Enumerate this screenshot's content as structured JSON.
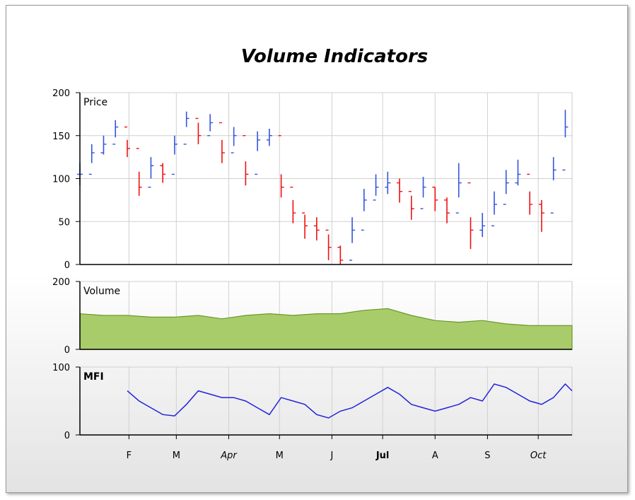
{
  "title": "Volume Indicators",
  "chart_data": [
    {
      "type": "ohlc",
      "panel": "Price",
      "label": "Price",
      "ylim": [
        0,
        200
      ],
      "yticks": [
        "200",
        "150",
        "100",
        "50",
        "0"
      ],
      "grid": true,
      "up_color": "#3355dd",
      "down_color": "#ee1111",
      "x_range": [
        "2011-01-03",
        "2011-10-21"
      ],
      "x": [
        "2011-01-03",
        "2011-01-10",
        "2011-01-17",
        "2011-01-24",
        "2011-01-31",
        "2011-02-07",
        "2011-02-14",
        "2011-02-21",
        "2011-02-28",
        "2011-03-07",
        "2011-03-14",
        "2011-03-21",
        "2011-03-28",
        "2011-04-04",
        "2011-04-11",
        "2011-04-18",
        "2011-04-25",
        "2011-05-02",
        "2011-05-09",
        "2011-05-16",
        "2011-05-23",
        "2011-05-30",
        "2011-06-06",
        "2011-06-13",
        "2011-06-20",
        "2011-06-27",
        "2011-07-04",
        "2011-07-11",
        "2011-07-18",
        "2011-07-25",
        "2011-08-01",
        "2011-08-08",
        "2011-08-15",
        "2011-08-22",
        "2011-08-29",
        "2011-09-05",
        "2011-09-12",
        "2011-09-19",
        "2011-09-26",
        "2011-10-03",
        "2011-10-10",
        "2011-10-17"
      ],
      "close": [
        105,
        130,
        140,
        160,
        135,
        90,
        115,
        105,
        140,
        170,
        150,
        165,
        130,
        150,
        105,
        145,
        150,
        90,
        60,
        45,
        40,
        20,
        5,
        40,
        75,
        90,
        95,
        85,
        65,
        90,
        75,
        60,
        95,
        40,
        45,
        70,
        95,
        105,
        70,
        60,
        110,
        160
      ],
      "high": [
        118,
        140,
        150,
        168,
        145,
        108,
        125,
        118,
        150,
        178,
        165,
        175,
        145,
        160,
        120,
        155,
        158,
        105,
        75,
        58,
        55,
        35,
        22,
        55,
        88,
        105,
        108,
        100,
        80,
        102,
        90,
        78,
        118,
        55,
        60,
        85,
        110,
        122,
        85,
        75,
        125,
        180
      ],
      "low": [
        92,
        118,
        128,
        148,
        125,
        80,
        100,
        95,
        128,
        160,
        140,
        155,
        118,
        138,
        92,
        132,
        138,
        78,
        48,
        30,
        28,
        5,
        0,
        25,
        62,
        80,
        82,
        72,
        52,
        78,
        62,
        48,
        78,
        18,
        32,
        58,
        82,
        92,
        58,
        38,
        98,
        148
      ]
    },
    {
      "type": "area",
      "panel": "Volume",
      "label": "Volume",
      "ylim": [
        0,
        200
      ],
      "yticks": [
        "200",
        "0"
      ],
      "grid": true,
      "fill_color": "#a9cc6a",
      "line_color": "#6a9a2a",
      "x": [
        "2011-01-03",
        "2011-01-17",
        "2011-01-31",
        "2011-02-14",
        "2011-02-28",
        "2011-03-14",
        "2011-03-28",
        "2011-04-11",
        "2011-04-25",
        "2011-05-09",
        "2011-05-23",
        "2011-06-06",
        "2011-06-20",
        "2011-07-04",
        "2011-07-18",
        "2011-08-01",
        "2011-08-15",
        "2011-08-29",
        "2011-09-12",
        "2011-09-26",
        "2011-10-10",
        "2011-10-21"
      ],
      "values": [
        105,
        100,
        100,
        95,
        95,
        100,
        90,
        100,
        105,
        100,
        105,
        105,
        115,
        120,
        100,
        85,
        80,
        85,
        75,
        70,
        70,
        70
      ]
    },
    {
      "type": "line",
      "panel": "MFI",
      "label": "MFI",
      "ylim": [
        0,
        100
      ],
      "yticks": [
        "100",
        "0"
      ],
      "grid": true,
      "line_color": "#2222dd",
      "x": [
        "2011-01-31",
        "2011-02-07",
        "2011-02-14",
        "2011-02-21",
        "2011-02-28",
        "2011-03-07",
        "2011-03-14",
        "2011-03-21",
        "2011-03-28",
        "2011-04-04",
        "2011-04-11",
        "2011-04-18",
        "2011-04-25",
        "2011-05-02",
        "2011-05-09",
        "2011-05-16",
        "2011-05-23",
        "2011-05-30",
        "2011-06-06",
        "2011-06-13",
        "2011-06-20",
        "2011-06-27",
        "2011-07-04",
        "2011-07-11",
        "2011-07-18",
        "2011-07-25",
        "2011-08-01",
        "2011-08-08",
        "2011-08-15",
        "2011-08-22",
        "2011-08-29",
        "2011-09-05",
        "2011-09-12",
        "2011-09-19",
        "2011-09-26",
        "2011-10-03",
        "2011-10-10",
        "2011-10-17",
        "2011-10-21"
      ],
      "values": [
        65,
        50,
        40,
        30,
        28,
        45,
        65,
        60,
        55,
        55,
        50,
        40,
        30,
        55,
        50,
        45,
        30,
        25,
        35,
        40,
        50,
        60,
        70,
        60,
        45,
        40,
        35,
        40,
        45,
        55,
        50,
        75,
        70,
        60,
        50,
        45,
        55,
        75,
        65
      ]
    }
  ],
  "x_axis": {
    "labels": [
      {
        "text": "F",
        "date": "2011-02-01",
        "italic": false,
        "bold": false
      },
      {
        "text": "M",
        "date": "2011-03-01",
        "italic": false,
        "bold": false
      },
      {
        "text": "Apr",
        "date": "2011-04-01",
        "italic": true,
        "bold": false
      },
      {
        "text": "M",
        "date": "2011-05-01",
        "italic": false,
        "bold": false
      },
      {
        "text": "J",
        "date": "2011-06-01",
        "italic": false,
        "bold": false
      },
      {
        "text": "Jul",
        "date": "2011-07-01",
        "italic": false,
        "bold": true
      },
      {
        "text": "A",
        "date": "2011-08-01",
        "italic": false,
        "bold": false
      },
      {
        "text": "S",
        "date": "2011-09-01",
        "italic": false,
        "bold": false
      },
      {
        "text": "Oct",
        "date": "2011-10-01",
        "italic": true,
        "bold": false
      }
    ]
  }
}
